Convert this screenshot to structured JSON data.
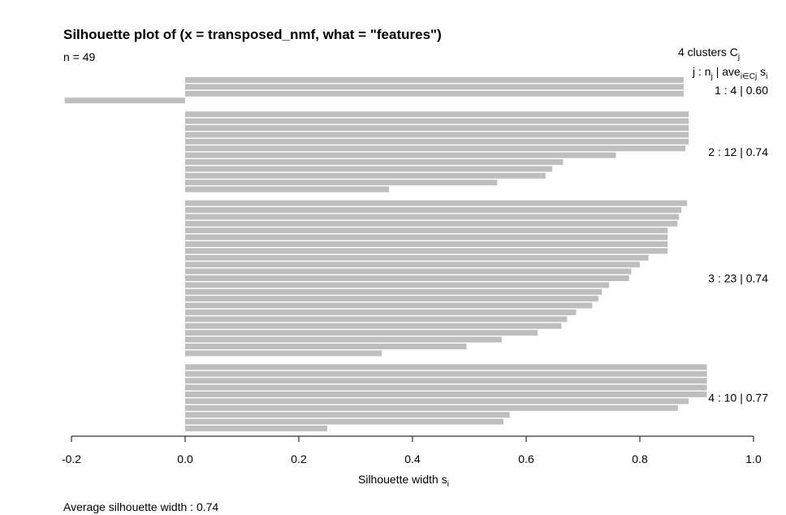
{
  "chart_data": {
    "type": "bar",
    "title": "Silhouette plot of (x = transposed_nmf, what = \"features\")",
    "n_label": "n = 49",
    "xlabel": "Silhouette width s",
    "xlabel_sub": "i",
    "xlim": [
      -0.2,
      1.0
    ],
    "x_ticks": [
      "-0.2",
      "0.0",
      "0.2",
      "0.4",
      "0.6",
      "0.8",
      "1.0"
    ],
    "x_tick_values": [
      -0.2,
      0.0,
      0.2,
      0.4,
      0.6,
      0.8,
      1.0
    ],
    "legend": {
      "header_text": "4  clusters  C",
      "header_sub": "j",
      "subheader": "j :  n | ave      s",
      "subheader_parts": {
        "p1": "j :  n",
        "sub1": "j",
        "p2": " | ave",
        "sub2": "i∈Cj",
        "p3": "  s",
        "sub3": "i"
      }
    },
    "clusters": [
      {
        "id": 1,
        "label": "1 :   4  |  0.60",
        "size": 4,
        "avg": 0.6,
        "values": [
          0.877,
          0.877,
          0.877,
          -0.212
        ]
      },
      {
        "id": 2,
        "label": "2 :   12  |  0.74",
        "size": 12,
        "avg": 0.74,
        "values": [
          0.886,
          0.886,
          0.886,
          0.886,
          0.886,
          0.88,
          0.758,
          0.665,
          0.646,
          0.634,
          0.549,
          0.359
        ]
      },
      {
        "id": 3,
        "label": "3 :   23  |  0.74",
        "size": 23,
        "avg": 0.74,
        "values": [
          0.883,
          0.873,
          0.869,
          0.866,
          0.849,
          0.849,
          0.849,
          0.849,
          0.815,
          0.8,
          0.785,
          0.781,
          0.746,
          0.733,
          0.727,
          0.716,
          0.688,
          0.672,
          0.662,
          0.62,
          0.557,
          0.495,
          0.346
        ]
      },
      {
        "id": 4,
        "label": "4 :   10  |  0.77",
        "size": 10,
        "avg": 0.77,
        "values": [
          0.918,
          0.918,
          0.918,
          0.918,
          0.918,
          0.886,
          0.867,
          0.571,
          0.56,
          0.25
        ]
      }
    ],
    "footer": "Average silhouette width :  0.74"
  }
}
